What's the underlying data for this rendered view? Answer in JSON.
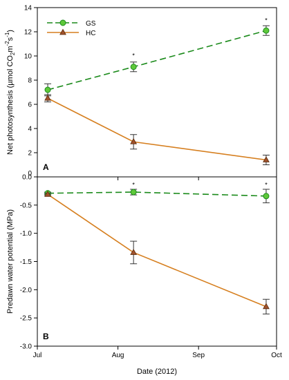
{
  "chart_data": [
    {
      "type": "line",
      "panel_label": "A",
      "ylabel_parts": [
        "Net photosynthesis (µmol CO",
        "2",
        "m",
        "-2",
        "s",
        "-1",
        ")"
      ],
      "ylim": [
        0,
        14
      ],
      "yticks": [
        0,
        2,
        4,
        6,
        8,
        10,
        12,
        14
      ],
      "ytick_labels": [
        "0",
        "2",
        "4",
        "6",
        "8",
        "10",
        "12",
        "14"
      ],
      "x": [
        "2012-07-05",
        "2012-08-07",
        "2012-09-27"
      ],
      "series": [
        {
          "name": "GS",
          "color": "#1a8a1a",
          "marker_fill": "#5ec83a",
          "marker": "circle",
          "line_style": "dashed",
          "values": [
            7.2,
            9.1,
            12.1
          ],
          "errors": [
            0.5,
            0.4,
            0.4
          ]
        },
        {
          "name": "HC",
          "color": "#d67f1f",
          "marker_fill": "#a0522d",
          "marker": "triangle",
          "line_style": "solid",
          "values": [
            6.5,
            2.9,
            1.4
          ],
          "errors": [
            0.3,
            0.6,
            0.4
          ]
        }
      ],
      "significance": [
        {
          "x": "2012-08-07",
          "y": 10.1,
          "text": "*"
        },
        {
          "x": "2012-09-27",
          "y": 13.0,
          "text": "*"
        }
      ],
      "legend": {
        "position": "top-left",
        "entries": [
          "GS",
          "HC"
        ]
      }
    },
    {
      "type": "line",
      "panel_label": "B",
      "ylabel": "Predawn water potential (MPa)",
      "ylim": [
        -3.0,
        0.0
      ],
      "yticks": [
        0,
        -0.5,
        -1.0,
        -1.5,
        -2.0,
        -2.5,
        -3.0
      ],
      "ytick_labels": [
        "0.0",
        "-0.5",
        "-1.0",
        "-1.5",
        "-2.0",
        "-2.5",
        "-3.0"
      ],
      "x": [
        "2012-07-05",
        "2012-08-07",
        "2012-09-27"
      ],
      "series": [
        {
          "name": "GS",
          "color": "#1a8a1a",
          "marker_fill": "#5ec83a",
          "marker": "circle",
          "line_style": "dashed",
          "values": [
            -0.29,
            -0.27,
            -0.34
          ],
          "errors": [
            0.02,
            0.05,
            0.12
          ]
        },
        {
          "name": "HC",
          "color": "#d67f1f",
          "marker_fill": "#a0522d",
          "marker": "triangle",
          "line_style": "solid",
          "values": [
            -0.31,
            -1.34,
            -2.3
          ],
          "errors": [
            0.02,
            0.2,
            0.13
          ]
        }
      ],
      "significance": [
        {
          "x": "2012-08-07",
          "y": -0.13,
          "text": "*"
        },
        {
          "x": "2012-09-27",
          "y": -0.13,
          "text": "*"
        }
      ]
    }
  ],
  "xaxis": {
    "xlabel": "Date (2012)",
    "range": [
      "2012-07-01",
      "2012-10-01"
    ],
    "ticks": [
      "2012-07-01",
      "2012-08-01",
      "2012-09-01",
      "2012-10-01"
    ],
    "tick_labels": [
      "Jul",
      "Aug",
      "Sep",
      "Oct"
    ]
  }
}
